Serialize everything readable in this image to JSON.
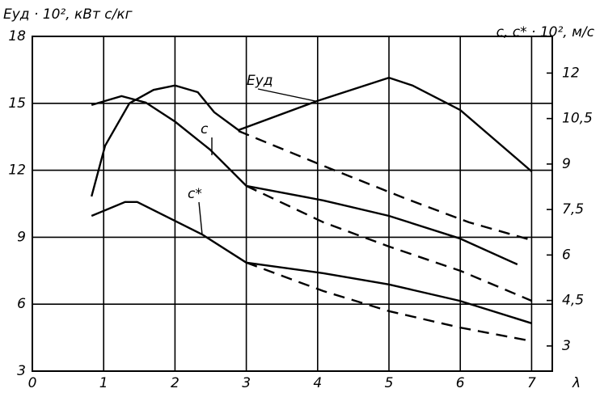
{
  "chart_data": {
    "type": "line",
    "y_label": "Eуд · 10², кВт с/кг",
    "y2_label": "c, c* · 10², м/с",
    "x_label": "λ",
    "xlim": [
      0,
      7.29
    ],
    "xticks": [
      0,
      1,
      2,
      3,
      4,
      5,
      6,
      7
    ],
    "ylim": [
      3,
      18
    ],
    "yticks": [
      3,
      6,
      9,
      12,
      15,
      18
    ],
    "y2lim": [
      2.17,
      13.21
    ],
    "y2ticks": [
      3,
      {
        "value": 4.5,
        "label": "4,5"
      },
      6,
      {
        "value": 7.5,
        "label": "7,5"
      },
      9,
      {
        "value": 10.5,
        "label": "10,5"
      },
      12
    ],
    "grid": true,
    "series": [
      {
        "name": "Eуд",
        "color": "#000000",
        "axis": "y",
        "dashed": false,
        "x": [
          0.83,
          1.02,
          1.36,
          1.7,
          2.0,
          2.32,
          2.55,
          2.89,
          3.99,
          5.0,
          5.33,
          6.0,
          7.0
        ],
        "values": [
          10.83,
          13.1,
          15.0,
          15.6,
          15.8,
          15.5,
          14.6,
          13.8,
          15.1,
          16.15,
          15.8,
          14.7,
          11.95
        ]
      },
      {
        "color": "#000000",
        "axis": "y",
        "dashed": true,
        "x": [
          2.89,
          4.08,
          5.22,
          6.12,
          7.0
        ],
        "values": [
          13.76,
          12.2,
          10.75,
          9.67,
          8.87
        ]
      },
      {
        "name": "c",
        "color": "#000000",
        "axis": "y2",
        "dashed": false,
        "x": [
          0.83,
          1.25,
          1.59,
          2.0,
          2.49,
          3.0,
          4.08,
          5.0,
          5.99,
          6.8
        ],
        "values": [
          10.95,
          11.24,
          11.03,
          10.4,
          9.48,
          8.28,
          7.8,
          7.29,
          6.55,
          5.69
        ]
      },
      {
        "color": "#000000",
        "axis": "y2",
        "dashed": true,
        "x": [
          3.0,
          4.08,
          5.0,
          6.0,
          7.0
        ],
        "values": [
          8.28,
          7.08,
          6.28,
          5.48,
          4.49
        ]
      },
      {
        "name": "c*",
        "color": "#000000",
        "axis": "y2",
        "dashed": false,
        "x": [
          0.83,
          1.3,
          1.47,
          2.38,
          3.0,
          4.08,
          5.0,
          5.99,
          7.0
        ],
        "values": [
          7.29,
          7.75,
          7.75,
          6.68,
          5.75,
          5.4,
          5.03,
          4.49,
          3.75
        ]
      },
      {
        "color": "#000000",
        "axis": "y2",
        "dashed": true,
        "x": [
          3.0,
          4.08,
          5.0,
          5.99,
          7.0
        ],
        "values": [
          5.75,
          4.81,
          4.15,
          3.61,
          3.16
        ]
      }
    ]
  }
}
